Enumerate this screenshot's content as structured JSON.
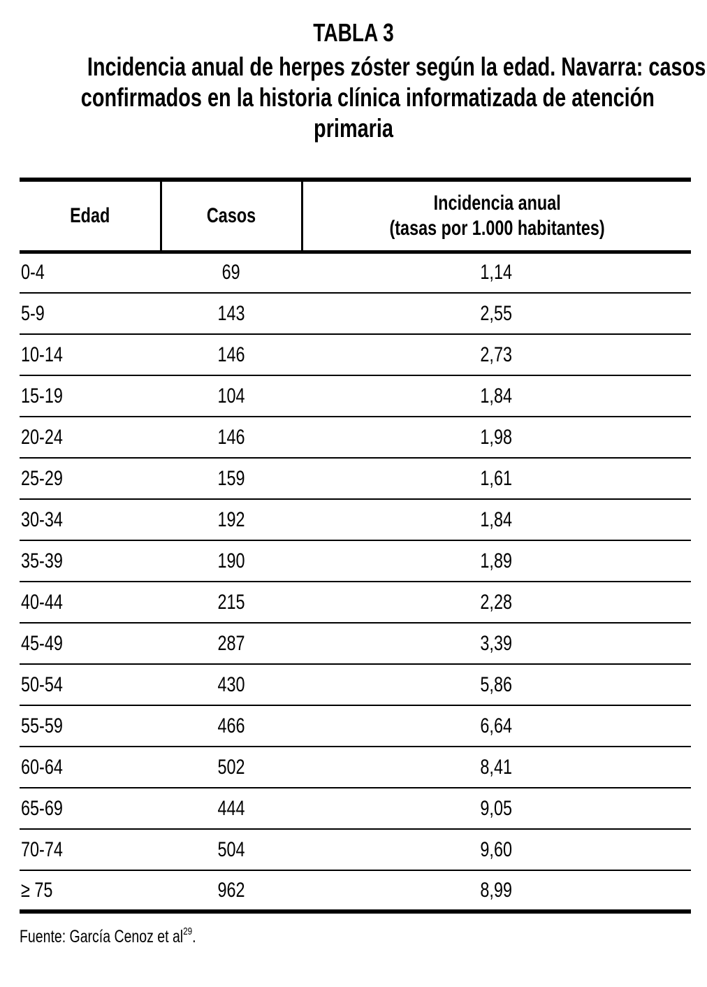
{
  "page": {
    "label": "TABLA 3",
    "subtitle_lines": [
      "Incidencia anual de herpes zóster según la edad. Navarra: casos",
      "confirmados en la historia clínica informatizada de atención",
      "primaria"
    ]
  },
  "table": {
    "headers": {
      "edad": "Edad",
      "casos": "Casos",
      "incidencia_line1": "Incidencia anual",
      "incidencia_line2": "(tasas por 1.000 habitantes)"
    },
    "rows": [
      {
        "edad": "0-4",
        "casos": "69",
        "incidencia": "1,14"
      },
      {
        "edad": "5-9",
        "casos": "143",
        "incidencia": "2,55"
      },
      {
        "edad": "10-14",
        "casos": "146",
        "incidencia": "2,73"
      },
      {
        "edad": "15-19",
        "casos": "104",
        "incidencia": "1,84"
      },
      {
        "edad": "20-24",
        "casos": "146",
        "incidencia": "1,98"
      },
      {
        "edad": "25-29",
        "casos": "159",
        "incidencia": "1,61"
      },
      {
        "edad": "30-34",
        "casos": "192",
        "incidencia": "1,84"
      },
      {
        "edad": "35-39",
        "casos": "190",
        "incidencia": "1,89"
      },
      {
        "edad": "40-44",
        "casos": "215",
        "incidencia": "2,28"
      },
      {
        "edad": "45-49",
        "casos": "287",
        "incidencia": "3,39"
      },
      {
        "edad": "50-54",
        "casos": "430",
        "incidencia": "5,86"
      },
      {
        "edad": "55-59",
        "casos": "466",
        "incidencia": "6,64"
      },
      {
        "edad": "60-64",
        "casos": "502",
        "incidencia": "8,41"
      },
      {
        "edad": "65-69",
        "casos": "444",
        "incidencia": "9,05"
      },
      {
        "edad": "70-74",
        "casos": "504",
        "incidencia": "9,60"
      },
      {
        "edad": "≥ 75",
        "casos": "962",
        "incidencia": "8,99"
      }
    ]
  },
  "footer": {
    "text": "Fuente: García Cenoz et al",
    "superscript": "29",
    "suffix": "."
  },
  "colors": {
    "background": "#ffffff",
    "text": "#000000",
    "border": "#000000"
  },
  "chart_data": {
    "type": "table",
    "title": "Incidencia anual de herpes zóster según la edad. Navarra: casos confirmados en la historia clínica informatizada de atención primaria",
    "categories": [
      "0-4",
      "5-9",
      "10-14",
      "15-19",
      "20-24",
      "25-29",
      "30-34",
      "35-39",
      "40-44",
      "45-49",
      "50-54",
      "55-59",
      "60-64",
      "65-69",
      "70-74",
      "≥ 75"
    ],
    "series": [
      {
        "name": "Casos",
        "values": [
          69,
          143,
          146,
          104,
          146,
          159,
          192,
          190,
          215,
          287,
          430,
          466,
          502,
          444,
          504,
          962
        ]
      },
      {
        "name": "Incidencia anual (tasas por 1.000 habitantes)",
        "values": [
          1.14,
          2.55,
          2.73,
          1.84,
          1.98,
          1.61,
          1.84,
          1.89,
          2.28,
          3.39,
          5.86,
          6.64,
          8.41,
          9.05,
          9.6,
          8.99
        ]
      }
    ]
  }
}
